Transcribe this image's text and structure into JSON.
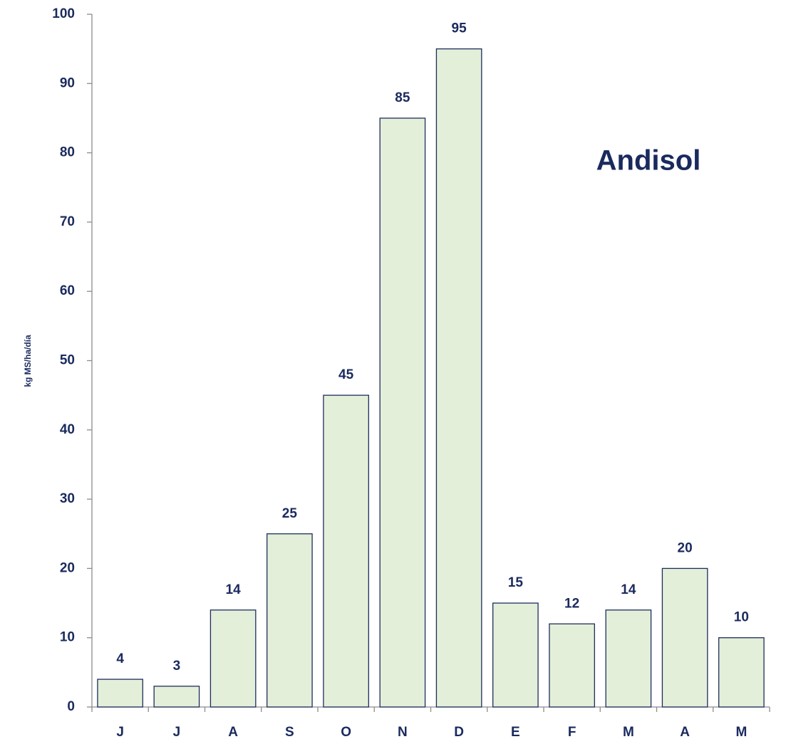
{
  "chart_data": {
    "type": "bar",
    "title": "Andisol",
    "y_label": "kg MS/ha/día",
    "categories": [
      "J",
      "J",
      "A",
      "S",
      "O",
      "N",
      "D",
      "E",
      "F",
      "M",
      "A",
      "M"
    ],
    "values": [
      4,
      3,
      14,
      25,
      45,
      85,
      95,
      15,
      12,
      14,
      20,
      10
    ],
    "color": "#e3efd9",
    "ylim": [
      0,
      100
    ],
    "yticks": [
      0,
      10,
      20,
      30,
      40,
      50,
      60,
      70,
      80,
      90,
      100
    ],
    "grid": false
  }
}
